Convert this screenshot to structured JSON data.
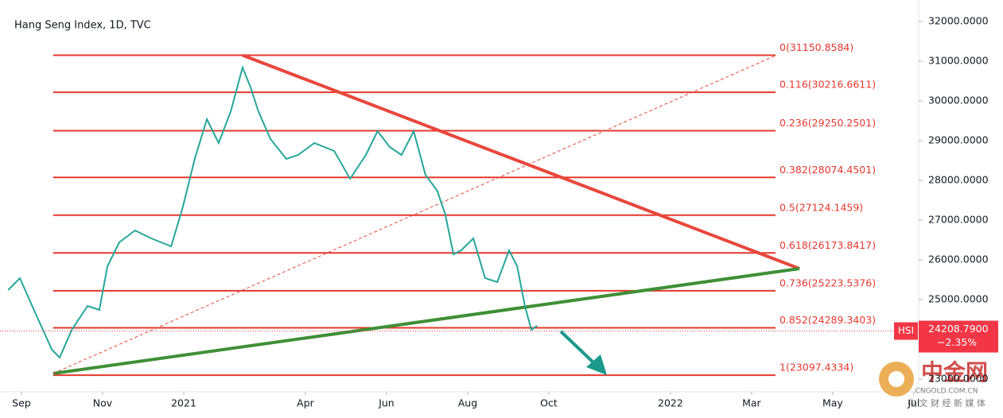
{
  "chart_data": {
    "type": "line",
    "title": "Hang Seng Index, 1D, TVC",
    "xlim": [
      -0.53,
      22.12
    ],
    "ylim": [
      22680,
      32540
    ],
    "xticks": [
      {
        "value": 0,
        "label": "Sep"
      },
      {
        "value": 2,
        "label": "Nov"
      },
      {
        "value": 4,
        "label": "2021"
      },
      {
        "value": 7,
        "label": "Apr"
      },
      {
        "value": 9,
        "label": "Jun"
      },
      {
        "value": 11,
        "label": "Aug"
      },
      {
        "value": 13,
        "label": "Oct"
      },
      {
        "value": 16,
        "label": "2022"
      },
      {
        "value": 18,
        "label": "Mar"
      },
      {
        "value": 20,
        "label": "May"
      },
      {
        "value": 22,
        "label": "Jul"
      }
    ],
    "yticks": [
      {
        "value": 23000,
        "label": "23000.0000"
      },
      {
        "value": 24000,
        "label": "24000.0000"
      },
      {
        "value": 25000,
        "label": "25000.0000"
      },
      {
        "value": 26000,
        "label": "26000.0000"
      },
      {
        "value": 27000,
        "label": "27000.0000"
      },
      {
        "value": 28000,
        "label": "28000.0000"
      },
      {
        "value": 29000,
        "label": "29000.0000"
      },
      {
        "value": 30000,
        "label": "30000.0000"
      },
      {
        "value": 31000,
        "label": "31000.0000"
      },
      {
        "value": 32000,
        "label": "32000.0000"
      }
    ],
    "series": [
      {
        "name": "HSI",
        "color": "#26a69a",
        "x": [
          -0.33,
          -0.04,
          0.35,
          0.75,
          0.94,
          1.24,
          1.63,
          1.92,
          2.12,
          2.41,
          2.8,
          3.2,
          3.69,
          3.98,
          4.27,
          4.57,
          4.86,
          5.16,
          5.45,
          5.65,
          5.84,
          6.14,
          6.53,
          6.82,
          7.22,
          7.71,
          8.1,
          8.49,
          8.78,
          9.08,
          9.37,
          9.67,
          9.96,
          10.25,
          10.45,
          10.65,
          10.84,
          11.14,
          11.43,
          11.73,
          12.02,
          12.22,
          12.41,
          12.57,
          12.71
        ],
        "values": [
          25240,
          25540,
          24640,
          23740,
          23540,
          24240,
          24840,
          24740,
          25840,
          26440,
          26740,
          26540,
          26340,
          27340,
          28540,
          29540,
          28940,
          29740,
          30840,
          30340,
          29740,
          29040,
          28540,
          28640,
          28940,
          28740,
          28040,
          28640,
          29240,
          28840,
          28640,
          29240,
          28140,
          27740,
          27140,
          26140,
          26240,
          26540,
          25540,
          25440,
          26240,
          25840,
          24840,
          24240,
          24340
        ]
      }
    ],
    "fib_x": [
      0.78,
      18.59
    ],
    "fib_color": "#e5382e",
    "fib_levels": [
      {
        "label": "0(31150.8584)",
        "value": 31150.8584
      },
      {
        "label": "0.116(30216.6611)",
        "value": 30216.6611
      },
      {
        "label": "0.236(29250.2501)",
        "value": 29250.2501
      },
      {
        "label": "0.382(28074.4501)",
        "value": 28074.4501
      },
      {
        "label": "0.5(27124.1459)",
        "value": 27124.1459
      },
      {
        "label": "0.618(26173.8417)",
        "value": 26173.8417
      },
      {
        "label": "0.736(25223.5376)",
        "value": 25223.5376
      },
      {
        "label": "0.852(24289.3403)",
        "value": 24289.3403
      },
      {
        "label": "1(23097.4334)",
        "value": 23097.4334
      }
    ],
    "trendlines": [
      {
        "color": "#e8473c",
        "x": [
          5.45,
          19.18
        ],
        "values": [
          31150,
          25780
        ]
      },
      {
        "color": "#3f8f36",
        "x": [
          0.78,
          19.18
        ],
        "values": [
          23140,
          25780
        ]
      },
      {
        "color": "#e8473c",
        "x": [
          0.78,
          18.59
        ],
        "values": [
          23140,
          31140
        ],
        "dashed": true
      }
    ],
    "last_price": {
      "symbol": "HSI",
      "value": 24208.79,
      "label": "24208.7900",
      "change": -2.35,
      "change_label": "−2.35%",
      "color": "#f23645"
    },
    "watermark": {
      "brand": "中金网",
      "domain": "CNGOLD.COM.CN",
      "slogan": "中 文 财 经 新 媒 体"
    }
  }
}
